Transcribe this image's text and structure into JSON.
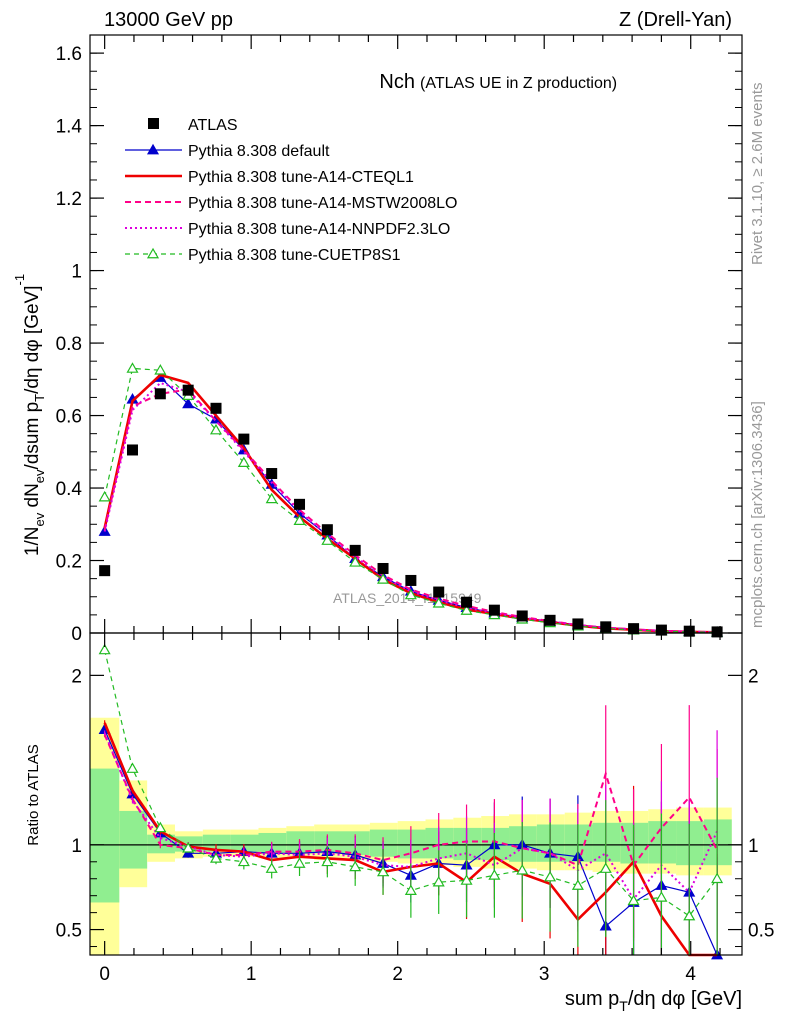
{
  "header": {
    "left": "13000 GeV pp",
    "right": "Z (Drell-Yan)"
  },
  "side_labels": {
    "rivet": "Rivet 3.1.10, ≥ 2.6M events",
    "mcplots": "mcplots.cern.ch [arXiv:1306.3436]"
  },
  "colors": {
    "atlas": "#000000",
    "default": "#0000cc",
    "cteql1": "#ee0000",
    "mstw": "#ff0088",
    "nnpdf": "#dd00dd",
    "cuetp": "#22bb22",
    "band_inner": "#90ee90",
    "band_outer": "#ffff99"
  },
  "chart_data": [
    {
      "type": "line",
      "title": "Nch",
      "subtitle": "(ATLAS UE in Z production)",
      "ylabel": "1/N_ev dN_ev/dsum p_T/dη dφ [GeV]^-1",
      "watermark": "ATLAS_2014_I1315949",
      "xlim": [
        -0.1,
        4.35
      ],
      "ylim": [
        0,
        1.65
      ],
      "yticks": [
        "0",
        "0.2",
        "0.4",
        "0.6",
        "0.8",
        "1",
        "1.2",
        "1.4",
        "1.6"
      ],
      "x": [
        0.0,
        0.19,
        0.38,
        0.57,
        0.76,
        0.95,
        1.14,
        1.33,
        1.52,
        1.71,
        1.9,
        2.09,
        2.28,
        2.47,
        2.66,
        2.85,
        3.04,
        3.23,
        3.42,
        3.61,
        3.8,
        3.99,
        4.18
      ],
      "legend": [
        "ATLAS",
        "Pythia 8.308 default",
        "Pythia 8.308 tune-A14-CTEQL1",
        "Pythia 8.308 tune-A14-MSTW2008LO",
        "Pythia 8.308 tune-A14-NNPDF2.3LO",
        "Pythia 8.308 tune-CUETP8S1"
      ],
      "series": [
        {
          "name": "ATLAS",
          "values": [
            0.172,
            0.505,
            0.66,
            0.67,
            0.62,
            0.535,
            0.44,
            0.355,
            0.285,
            0.228,
            0.178,
            0.145,
            0.113,
            0.085,
            0.063,
            0.047,
            0.035,
            0.025,
            0.017,
            0.012,
            0.008,
            0.005,
            0.003
          ]
        },
        {
          "name": "Pythia 8.308 default",
          "values": [
            0.28,
            0.645,
            0.705,
            0.632,
            0.59,
            0.505,
            0.41,
            0.33,
            0.27,
            0.205,
            0.155,
            0.115,
            0.09,
            0.07,
            0.055,
            0.042,
            0.032,
            0.022,
            0.015,
            0.01,
            0.006,
            0.004,
            0.002
          ]
        },
        {
          "name": "Pythia 8.308 tune-A14-CTEQL1",
          "values": [
            0.29,
            0.64,
            0.712,
            0.69,
            0.6,
            0.51,
            0.395,
            0.32,
            0.26,
            0.205,
            0.148,
            0.11,
            0.085,
            0.065,
            0.052,
            0.04,
            0.03,
            0.02,
            0.013,
            0.009,
            0.005,
            0.003,
            0.002
          ]
        },
        {
          "name": "Pythia 8.308 tune-A14-MSTW2008LO",
          "values": [
            0.285,
            0.625,
            0.66,
            0.672,
            0.585,
            0.505,
            0.42,
            0.34,
            0.275,
            0.215,
            0.16,
            0.12,
            0.095,
            0.075,
            0.058,
            0.044,
            0.033,
            0.022,
            0.015,
            0.01,
            0.006,
            0.004,
            0.002
          ]
        },
        {
          "name": "Pythia 8.308 tune-A14-NNPDF2.3LO",
          "values": [
            0.28,
            0.615,
            0.69,
            0.665,
            0.585,
            0.5,
            0.415,
            0.335,
            0.27,
            0.21,
            0.155,
            0.115,
            0.09,
            0.07,
            0.055,
            0.042,
            0.032,
            0.022,
            0.015,
            0.01,
            0.006,
            0.004,
            0.002
          ]
        },
        {
          "name": "Pythia 8.308 tune-CUETP8S1",
          "values": [
            0.375,
            0.73,
            0.725,
            0.655,
            0.56,
            0.47,
            0.37,
            0.31,
            0.255,
            0.195,
            0.148,
            0.105,
            0.082,
            0.062,
            0.05,
            0.038,
            0.028,
            0.019,
            0.013,
            0.008,
            0.005,
            0.003,
            0.002
          ]
        }
      ]
    },
    {
      "type": "line",
      "ylabel": "Ratio to ATLAS",
      "xlabel": "sum p_T/dη dφ [GeV]",
      "xlim": [
        -0.1,
        4.35
      ],
      "ylim": [
        0.35,
        2.25
      ],
      "yticks": [
        "0.5",
        "1",
        "2"
      ],
      "xticks": [
        "0",
        "1",
        "2",
        "3",
        "4"
      ],
      "x": [
        0.0,
        0.19,
        0.38,
        0.57,
        0.76,
        0.95,
        1.14,
        1.33,
        1.52,
        1.71,
        1.9,
        2.09,
        2.28,
        2.47,
        2.66,
        2.85,
        3.04,
        3.23,
        3.42,
        3.61,
        3.8,
        3.99,
        4.18
      ],
      "band_edges": [
        -0.1,
        0.1,
        0.29,
        0.48,
        0.67,
        0.86,
        1.05,
        1.24,
        1.43,
        1.62,
        1.81,
        2.0,
        2.19,
        2.38,
        2.57,
        2.76,
        2.95,
        3.14,
        3.33,
        3.52,
        3.71,
        3.9,
        4.09,
        4.28
      ],
      "band_inner": [
        [
          0.66,
          1.45
        ],
        [
          0.86,
          1.2
        ],
        [
          0.95,
          1.06
        ],
        [
          0.96,
          1.05
        ],
        [
          0.96,
          1.06
        ],
        [
          0.96,
          1.06
        ],
        [
          0.95,
          1.07
        ],
        [
          0.95,
          1.08
        ],
        [
          0.95,
          1.08
        ],
        [
          0.94,
          1.08
        ],
        [
          0.93,
          1.09
        ],
        [
          0.92,
          1.09
        ],
        [
          0.92,
          1.1
        ],
        [
          0.91,
          1.1
        ],
        [
          0.91,
          1.1
        ],
        [
          0.9,
          1.11
        ],
        [
          0.9,
          1.12
        ],
        [
          0.9,
          1.12
        ],
        [
          0.9,
          1.13
        ],
        [
          0.89,
          1.13
        ],
        [
          0.89,
          1.14
        ],
        [
          0.88,
          1.14
        ],
        [
          0.88,
          1.15
        ]
      ],
      "band_outer": [
        [
          0.35,
          1.75
        ],
        [
          0.75,
          1.38
        ],
        [
          0.9,
          1.12
        ],
        [
          0.92,
          1.08
        ],
        [
          0.93,
          1.09
        ],
        [
          0.93,
          1.09
        ],
        [
          0.92,
          1.1
        ],
        [
          0.92,
          1.11
        ],
        [
          0.91,
          1.12
        ],
        [
          0.91,
          1.12
        ],
        [
          0.9,
          1.13
        ],
        [
          0.89,
          1.14
        ],
        [
          0.88,
          1.15
        ],
        [
          0.87,
          1.16
        ],
        [
          0.86,
          1.17
        ],
        [
          0.86,
          1.18
        ],
        [
          0.85,
          1.18
        ],
        [
          0.85,
          1.19
        ],
        [
          0.84,
          1.2
        ],
        [
          0.83,
          1.2
        ],
        [
          0.83,
          1.21
        ],
        [
          0.82,
          1.22
        ],
        [
          0.82,
          1.22
        ]
      ],
      "series": [
        {
          "name": "Pythia 8.308 default",
          "values": [
            1.68,
            1.3,
            1.07,
            0.95,
            0.95,
            0.96,
            0.95,
            0.95,
            0.96,
            0.94,
            0.89,
            0.82,
            0.89,
            0.88,
            1.0,
            1.0,
            0.95,
            0.93,
            0.52,
            0.66,
            0.76,
            0.72,
            0.33
          ]
        },
        {
          "name": "Pythia 8.308 tune-A14-CTEQL1",
          "values": [
            1.72,
            1.32,
            1.08,
            0.99,
            0.97,
            0.96,
            0.91,
            0.93,
            0.92,
            0.91,
            0.84,
            0.87,
            0.89,
            0.78,
            0.93,
            0.83,
            0.77,
            0.56,
            0.72,
            0.9,
            0.58,
            0.35,
            0.35
          ]
        },
        {
          "name": "Pythia 8.308 tune-A14-MSTW2008LO",
          "values": [
            1.65,
            1.27,
            1.0,
            0.98,
            0.94,
            0.94,
            0.96,
            0.96,
            0.97,
            0.95,
            0.91,
            0.95,
            1.0,
            1.02,
            1.02,
            0.98,
            0.95,
            0.88,
            1.42,
            0.88,
            1.1,
            1.28,
            0.97
          ]
        },
        {
          "name": "Pythia 8.308 tune-A14-NNPDF2.3LO",
          "values": [
            1.66,
            1.26,
            1.04,
            0.99,
            0.94,
            0.93,
            0.95,
            0.94,
            0.95,
            0.93,
            0.88,
            0.87,
            0.92,
            0.95,
            0.88,
            0.98,
            0.95,
            0.85,
            0.95,
            0.68,
            0.88,
            0.72,
            1.08
          ]
        },
        {
          "name": "Pythia 8.308 tune-CUETP8S1",
          "values": [
            2.15,
            1.45,
            1.1,
            0.98,
            0.92,
            0.9,
            0.86,
            0.89,
            0.9,
            0.87,
            0.84,
            0.73,
            0.78,
            0.79,
            0.82,
            0.85,
            0.81,
            0.76,
            0.86,
            0.67,
            0.69,
            0.58,
            0.8
          ]
        }
      ]
    }
  ]
}
